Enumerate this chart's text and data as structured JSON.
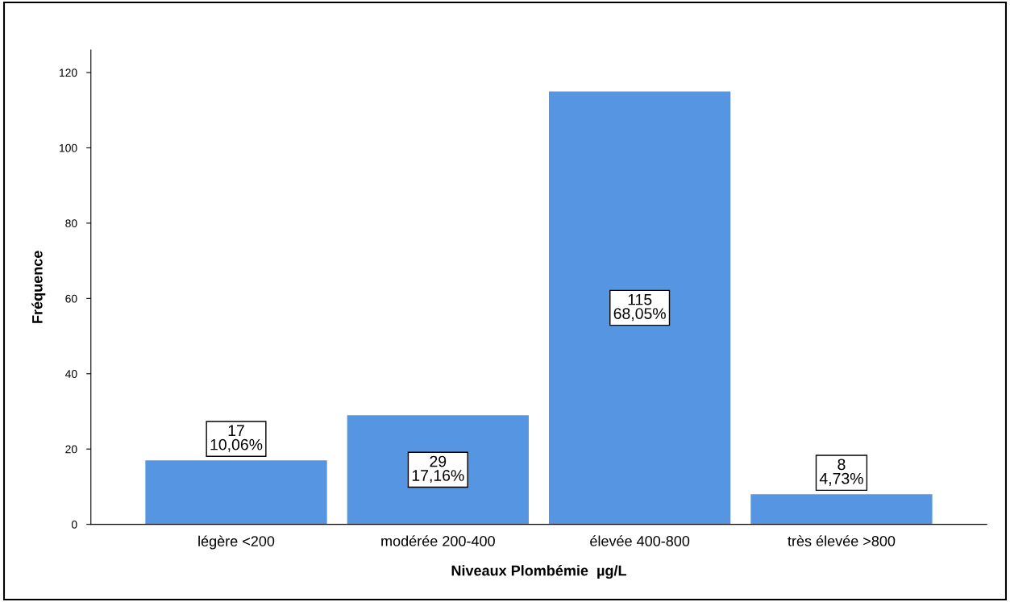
{
  "chart_data": {
    "type": "bar",
    "xlabel": "Niveaux Plombémie  µg/L",
    "ylabel": "Fréquence",
    "categories": [
      "légère <200",
      "modérée 200-400",
      "élevée 400-800",
      "très élevée >800"
    ],
    "values": [
      17,
      29,
      115,
      8
    ],
    "value_labels": [
      "17\n10,06%",
      "29\n17,16%",
      "115\n68,05%",
      "8\n4,73%"
    ],
    "color": "#5595e2",
    "ylim": [
      0,
      126
    ],
    "yticks": [
      0,
      20,
      40,
      60,
      80,
      100,
      120
    ],
    "grid": false,
    "legend": false
  }
}
